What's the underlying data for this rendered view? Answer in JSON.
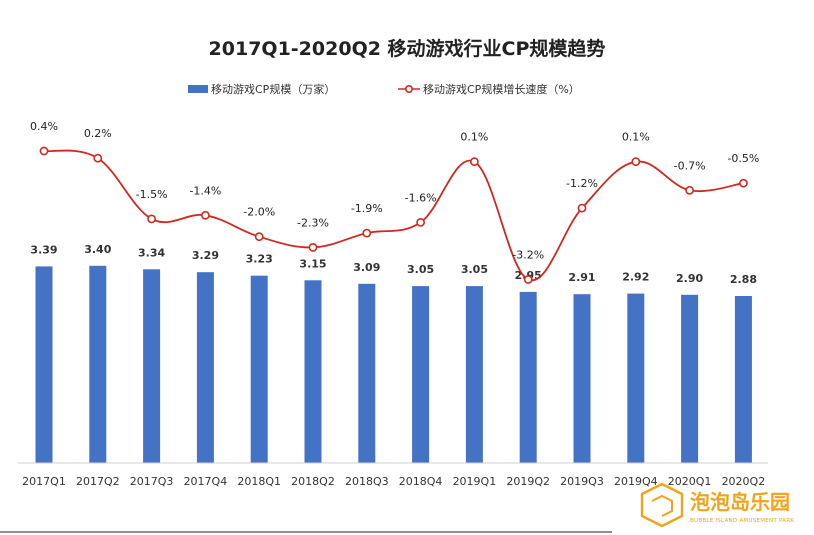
{
  "chart_data": {
    "type": "bar+line",
    "title": "2017Q1-2020Q2  移动游戏行业CP规模趋势",
    "xlabel": "",
    "ylabel": "",
    "categories": [
      "2017Q1",
      "2017Q2",
      "2017Q3",
      "2017Q4",
      "2018Q1",
      "2018Q2",
      "2018Q3",
      "2018Q4",
      "2019Q1",
      "2019Q2",
      "2019Q3",
      "2019Q4",
      "2020Q1",
      "2020Q2"
    ],
    "series": [
      {
        "name": "移动游戏CP规模（万家）",
        "type": "bar",
        "color": "#4472c4",
        "values": [
          3.39,
          3.4,
          3.34,
          3.29,
          3.23,
          3.15,
          3.09,
          3.05,
          3.05,
          2.95,
          2.91,
          2.92,
          2.9,
          2.88
        ],
        "labels": [
          "3.39",
          "3.40",
          "3.34",
          "3.29",
          "3.23",
          "3.15",
          "3.09",
          "3.05",
          "3.05",
          "2.95",
          "2.91",
          "2.92",
          "2.90",
          "2.88"
        ]
      },
      {
        "name": "移动游戏CP规模增长速度（%）",
        "type": "line",
        "color": "#d0281f",
        "values": [
          0.4,
          0.2,
          -1.5,
          -1.4,
          -2.0,
          -2.3,
          -1.9,
          -1.6,
          0.1,
          -3.2,
          -1.2,
          0.1,
          -0.7,
          -0.5
        ],
        "labels": [
          "0.4%",
          "0.2%",
          "-1.5%",
          "-1.4%",
          "-2.0%",
          "-2.3%",
          "-1.9%",
          "-1.6%",
          "0.1%",
          "-3.2%",
          "-1.2%",
          "0.1%",
          "-0.7%",
          "-0.5%"
        ]
      }
    ],
    "bar_axis_range": [
      0,
      6.5
    ],
    "line_axis_range": [
      -10,
      1
    ],
    "legend_position": "top",
    "grid": false
  },
  "watermark": {
    "title": "泡泡岛乐园",
    "subtitle": "BUBBLE ISLAND AMUSEMENT PARK",
    "color": "#f2a31b"
  }
}
